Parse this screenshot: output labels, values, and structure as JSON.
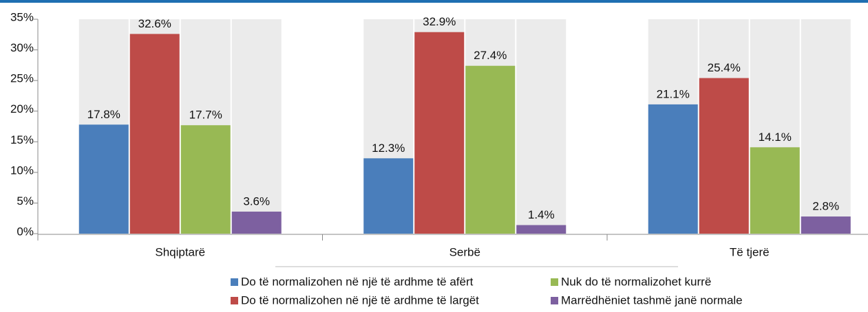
{
  "chart_data": {
    "type": "bar",
    "categories": [
      "Shqiptarë",
      "Serbë",
      "Të tjerë"
    ],
    "series": [
      {
        "name": "Do të normalizohen në një të ardhme të afërt",
        "color": "#4a7ebb",
        "values": [
          17.8,
          12.3,
          21.1
        ],
        "value_labels": [
          "17.8%",
          "12.3%",
          "21.1%"
        ]
      },
      {
        "name": "Do të normalizohen në një të ardhme të largët",
        "color": "#be4b48",
        "values": [
          32.6,
          32.9,
          25.4
        ],
        "value_labels": [
          "32.6%",
          "32.9%",
          "25.4%"
        ]
      },
      {
        "name": "Nuk do të normalizohet kurrë",
        "color": "#98b954",
        "values": [
          17.7,
          27.4,
          14.1
        ],
        "value_labels": [
          "17.7%",
          "27.4%",
          "14.1%"
        ]
      },
      {
        "name": "Marrëdhëniet tashmë janë normale",
        "color": "#7d60a0",
        "values": [
          3.6,
          1.4,
          2.8
        ],
        "value_labels": [
          "3.6%",
          "1.4%",
          "2.8%"
        ]
      }
    ],
    "ylim": [
      0,
      35
    ],
    "yticks": [
      {
        "value": 0,
        "label": "0%"
      },
      {
        "value": 5,
        "label": "5%"
      },
      {
        "value": 10,
        "label": "10%"
      },
      {
        "value": 15,
        "label": "15%"
      },
      {
        "value": 20,
        "label": "20%"
      },
      {
        "value": 25,
        "label": "25%"
      },
      {
        "value": 30,
        "label": "30%"
      },
      {
        "value": 35,
        "label": "35%"
      }
    ]
  }
}
